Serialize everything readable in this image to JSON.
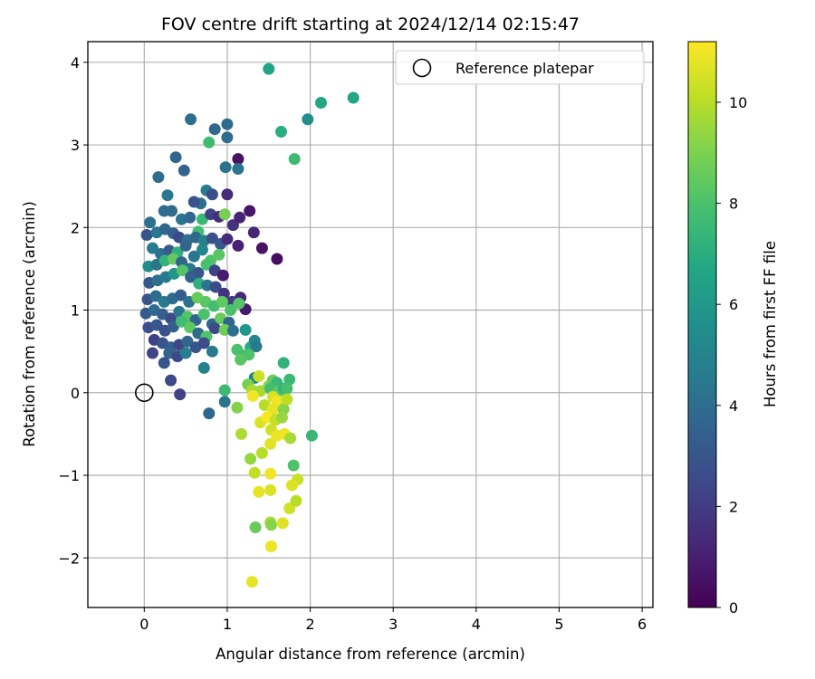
{
  "chart_data": {
    "type": "scatter",
    "title": "FOV centre drift starting at 2024/12/14 02:15:47",
    "xlabel": "Angular distance from reference (arcmin)",
    "ylabel": "Rotation from reference (arcmin)",
    "xlim": [
      -0.68,
      6.13
    ],
    "ylim": [
      -2.6,
      4.25
    ],
    "xticks": [
      0,
      1,
      2,
      3,
      4,
      5,
      6
    ],
    "xtick_labels": [
      "0",
      "1",
      "2",
      "3",
      "4",
      "5",
      "6"
    ],
    "yticks": [
      -2,
      -1,
      0,
      1,
      2,
      3,
      4
    ],
    "ytick_labels": [
      "−2",
      "−1",
      "0",
      "1",
      "2",
      "3",
      "4"
    ],
    "grid": true,
    "legend": {
      "position": "top-right",
      "entries": [
        "Reference platepar"
      ]
    },
    "reference_point": {
      "name": "Reference platepar",
      "x": 0,
      "y": 0
    },
    "colorbar": {
      "label": "Hours from first FF file",
      "range": [
        0,
        11.2
      ],
      "ticks": [
        0,
        2,
        4,
        6,
        8,
        10
      ],
      "tick_labels": [
        "0",
        "2",
        "4",
        "6",
        "8",
        "10"
      ],
      "colormap": "viridis"
    },
    "points": [
      [
        1.5,
        3.92,
        6.6
      ],
      [
        2.13,
        3.51,
        6.7
      ],
      [
        2.52,
        3.57,
        6.6
      ],
      [
        1.97,
        3.31,
        5.5
      ],
      [
        1.65,
        3.16,
        7.0
      ],
      [
        1.81,
        2.83,
        7.6
      ],
      [
        0.56,
        3.31,
        4.1
      ],
      [
        0.85,
        3.19,
        3.7
      ],
      [
        1.0,
        3.25,
        3.9
      ],
      [
        0.78,
        3.03,
        7.7
      ],
      [
        1.0,
        3.09,
        4.0
      ],
      [
        0.17,
        2.61,
        4.0
      ],
      [
        0.48,
        2.69,
        3.6
      ],
      [
        0.38,
        2.85,
        3.8
      ],
      [
        1.13,
        2.83,
        0.6
      ],
      [
        1.13,
        2.71,
        4.4
      ],
      [
        0.98,
        2.73,
        4.2
      ],
      [
        0.28,
        2.39,
        4.4
      ],
      [
        0.68,
        2.29,
        4.1
      ],
      [
        0.75,
        2.45,
        4.7
      ],
      [
        0.82,
        2.4,
        2.7
      ],
      [
        1.0,
        2.4,
        1.4
      ],
      [
        0.6,
        2.31,
        3.0
      ],
      [
        0.07,
        2.06,
        4.2
      ],
      [
        0.24,
        2.2,
        4.0
      ],
      [
        0.33,
        2.2,
        3.9
      ],
      [
        0.45,
        2.1,
        4.3
      ],
      [
        0.55,
        2.12,
        3.8
      ],
      [
        0.7,
        2.1,
        7.5
      ],
      [
        0.8,
        2.16,
        2.2
      ],
      [
        0.9,
        2.13,
        1.5
      ],
      [
        0.97,
        2.16,
        8.9
      ],
      [
        1.07,
        2.03,
        1.6
      ],
      [
        1.15,
        2.12,
        1.2
      ],
      [
        1.27,
        2.2,
        0.7
      ],
      [
        0.65,
        1.95,
        7.8
      ],
      [
        0.03,
        1.91,
        3.0
      ],
      [
        0.15,
        1.94,
        4.5
      ],
      [
        0.25,
        1.98,
        3.7
      ],
      [
        0.35,
        1.93,
        3.4
      ],
      [
        0.42,
        1.88,
        2.5
      ],
      [
        0.52,
        1.85,
        4.2
      ],
      [
        0.62,
        1.88,
        3.8
      ],
      [
        0.72,
        1.84,
        4.8
      ],
      [
        0.82,
        1.87,
        2.8
      ],
      [
        0.92,
        1.8,
        3.1
      ],
      [
        1.0,
        1.86,
        1.4
      ],
      [
        1.13,
        1.78,
        1.0
      ],
      [
        1.32,
        1.94,
        1.3
      ],
      [
        1.42,
        1.75,
        0.6
      ],
      [
        1.6,
        1.62,
        0.4
      ],
      [
        0.1,
        1.75,
        4.6
      ],
      [
        0.2,
        1.68,
        4.1
      ],
      [
        0.3,
        1.72,
        3.2
      ],
      [
        0.4,
        1.7,
        7.1
      ],
      [
        0.5,
        1.78,
        3.6
      ],
      [
        0.6,
        1.65,
        4.4
      ],
      [
        0.7,
        1.73,
        5.1
      ],
      [
        0.8,
        1.6,
        8.1
      ],
      [
        0.9,
        1.67,
        8.3
      ],
      [
        0.05,
        1.53,
        5.5
      ],
      [
        0.15,
        1.55,
        4.3
      ],
      [
        0.25,
        1.6,
        7.2
      ],
      [
        0.35,
        1.62,
        8.5
      ],
      [
        0.45,
        1.58,
        3.7
      ],
      [
        0.55,
        1.5,
        4.5
      ],
      [
        0.65,
        1.45,
        3.0
      ],
      [
        0.75,
        1.55,
        7.9
      ],
      [
        0.85,
        1.48,
        2.2
      ],
      [
        0.95,
        1.42,
        0.9
      ],
      [
        0.06,
        1.33,
        3.1
      ],
      [
        0.16,
        1.36,
        4.1
      ],
      [
        0.26,
        1.4,
        4.6
      ],
      [
        0.36,
        1.44,
        5.9
      ],
      [
        0.46,
        1.48,
        8.2
      ],
      [
        0.56,
        1.4,
        3.4
      ],
      [
        0.66,
        1.32,
        7.1
      ],
      [
        0.76,
        1.3,
        4.3
      ],
      [
        0.86,
        1.28,
        2.6
      ],
      [
        0.96,
        1.2,
        1.7
      ],
      [
        1.06,
        1.1,
        2.0
      ],
      [
        1.16,
        1.15,
        1.3
      ],
      [
        1.22,
        1.01,
        0.8
      ],
      [
        0.04,
        1.13,
        3.0
      ],
      [
        0.14,
        1.17,
        4.0
      ],
      [
        0.24,
        1.1,
        4.6
      ],
      [
        0.34,
        1.14,
        3.9
      ],
      [
        0.44,
        1.18,
        3.3
      ],
      [
        0.54,
        1.1,
        4.2
      ],
      [
        0.64,
        1.15,
        8.6
      ],
      [
        0.74,
        1.1,
        8.3
      ],
      [
        0.84,
        1.05,
        7.8
      ],
      [
        0.94,
        1.1,
        8.4
      ],
      [
        1.04,
        1.0,
        8.0
      ],
      [
        1.14,
        1.08,
        8.2
      ],
      [
        0.02,
        0.96,
        3.2
      ],
      [
        0.12,
        1.0,
        3.9
      ],
      [
        0.22,
        0.95,
        3.4
      ],
      [
        0.32,
        0.9,
        2.6
      ],
      [
        0.42,
        0.98,
        4.4
      ],
      [
        0.52,
        0.92,
        8.2
      ],
      [
        0.62,
        0.88,
        3.6
      ],
      [
        0.72,
        0.95,
        8.0
      ],
      [
        0.82,
        0.83,
        3.8
      ],
      [
        0.92,
        0.9,
        8.6
      ],
      [
        1.02,
        0.85,
        3.7
      ],
      [
        0.05,
        0.79,
        2.7
      ],
      [
        0.15,
        0.82,
        3.1
      ],
      [
        0.25,
        0.75,
        2.8
      ],
      [
        0.35,
        0.8,
        3.4
      ],
      [
        0.45,
        0.86,
        7.7
      ],
      [
        0.55,
        0.79,
        8.4
      ],
      [
        0.65,
        0.72,
        3.9
      ],
      [
        0.75,
        0.68,
        8.1
      ],
      [
        0.85,
        0.78,
        2.5
      ],
      [
        0.97,
        0.76,
        8.7
      ],
      [
        1.07,
        0.75,
        4.1
      ],
      [
        1.22,
        0.76,
        5.9
      ],
      [
        0.12,
        0.64,
        2.1
      ],
      [
        0.22,
        0.6,
        2.9
      ],
      [
        0.32,
        0.55,
        3.5
      ],
      [
        0.42,
        0.58,
        2.4
      ],
      [
        0.52,
        0.62,
        3.7
      ],
      [
        0.62,
        0.55,
        3.0
      ],
      [
        0.72,
        0.6,
        2.6
      ],
      [
        0.1,
        0.48,
        2.3
      ],
      [
        0.3,
        0.48,
        3.6
      ],
      [
        0.4,
        0.44,
        2.5
      ],
      [
        0.5,
        0.48,
        4.7
      ],
      [
        0.82,
        0.5,
        4.6
      ],
      [
        0.24,
        0.36,
        2.9
      ],
      [
        0.72,
        0.3,
        4.9
      ],
      [
        1.12,
        0.52,
        8.0
      ],
      [
        1.2,
        0.45,
        7.8
      ],
      [
        1.28,
        0.55,
        6.9
      ],
      [
        1.33,
        0.63,
        5.2
      ],
      [
        1.35,
        0.56,
        4.6
      ],
      [
        1.16,
        0.4,
        8.3
      ],
      [
        1.26,
        0.46,
        8.1
      ],
      [
        0.32,
        0.15,
        2.5
      ],
      [
        0.43,
        -0.02,
        2.2
      ],
      [
        0.97,
        0.03,
        7.6
      ],
      [
        0.97,
        -0.11,
        4.4
      ],
      [
        0.78,
        -0.25,
        3.8
      ],
      [
        1.12,
        -0.18,
        9.1
      ],
      [
        1.33,
        0.18,
        5.1
      ],
      [
        1.38,
        0.2,
        10.3
      ],
      [
        1.25,
        0.1,
        8.9
      ],
      [
        1.3,
        0.03,
        9.8
      ],
      [
        1.4,
        0.02,
        9.7
      ],
      [
        1.5,
        0.08,
        9.3
      ],
      [
        1.55,
        0.15,
        8.6
      ],
      [
        1.6,
        0.12,
        7.5
      ],
      [
        1.52,
        0.05,
        7.8
      ],
      [
        1.62,
        0.02,
        8.4
      ],
      [
        1.68,
        0.05,
        7.3
      ],
      [
        1.75,
        0.16,
        7.6
      ],
      [
        1.72,
        0.05,
        7.9
      ],
      [
        1.68,
        0.36,
        7.2
      ],
      [
        1.31,
        -0.04,
        11.0
      ],
      [
        1.55,
        -0.05,
        10.5
      ],
      [
        1.6,
        -0.1,
        11.0
      ],
      [
        1.45,
        -0.15,
        10.0
      ],
      [
        1.55,
        -0.2,
        10.8
      ],
      [
        1.68,
        -0.2,
        9.2
      ],
      [
        1.72,
        -0.08,
        10.1
      ],
      [
        1.4,
        -0.36,
        10.6
      ],
      [
        1.48,
        -0.3,
        11.1
      ],
      [
        1.58,
        -0.33,
        10.2
      ],
      [
        1.66,
        -0.3,
        9.5
      ],
      [
        1.53,
        -0.45,
        10.4
      ],
      [
        1.6,
        -0.52,
        10.9
      ],
      [
        1.69,
        -0.5,
        11.0
      ],
      [
        1.76,
        -0.55,
        9.7
      ],
      [
        1.52,
        -0.62,
        10.7
      ],
      [
        1.42,
        -0.73,
        10.0
      ],
      [
        1.28,
        -0.8,
        9.4
      ],
      [
        1.17,
        -0.5,
        9.8
      ],
      [
        2.02,
        -0.52,
        7.5
      ],
      [
        1.8,
        -0.88,
        8.1
      ],
      [
        1.85,
        -1.05,
        10.3
      ],
      [
        1.78,
        -1.12,
        10.6
      ],
      [
        1.75,
        -1.4,
        10.4
      ],
      [
        1.83,
        -1.31,
        10.0
      ],
      [
        1.38,
        -1.2,
        10.8
      ],
      [
        1.52,
        -1.18,
        10.6
      ],
      [
        1.33,
        -0.97,
        10.2
      ],
      [
        1.52,
        -0.98,
        11.0
      ],
      [
        1.67,
        -1.58,
        10.7
      ],
      [
        1.52,
        -1.57,
        9.8
      ],
      [
        1.53,
        -1.6,
        9.2
      ],
      [
        1.34,
        -1.63,
        8.6
      ],
      [
        1.53,
        -1.86,
        10.9
      ],
      [
        1.3,
        -2.29,
        10.8
      ]
    ]
  }
}
